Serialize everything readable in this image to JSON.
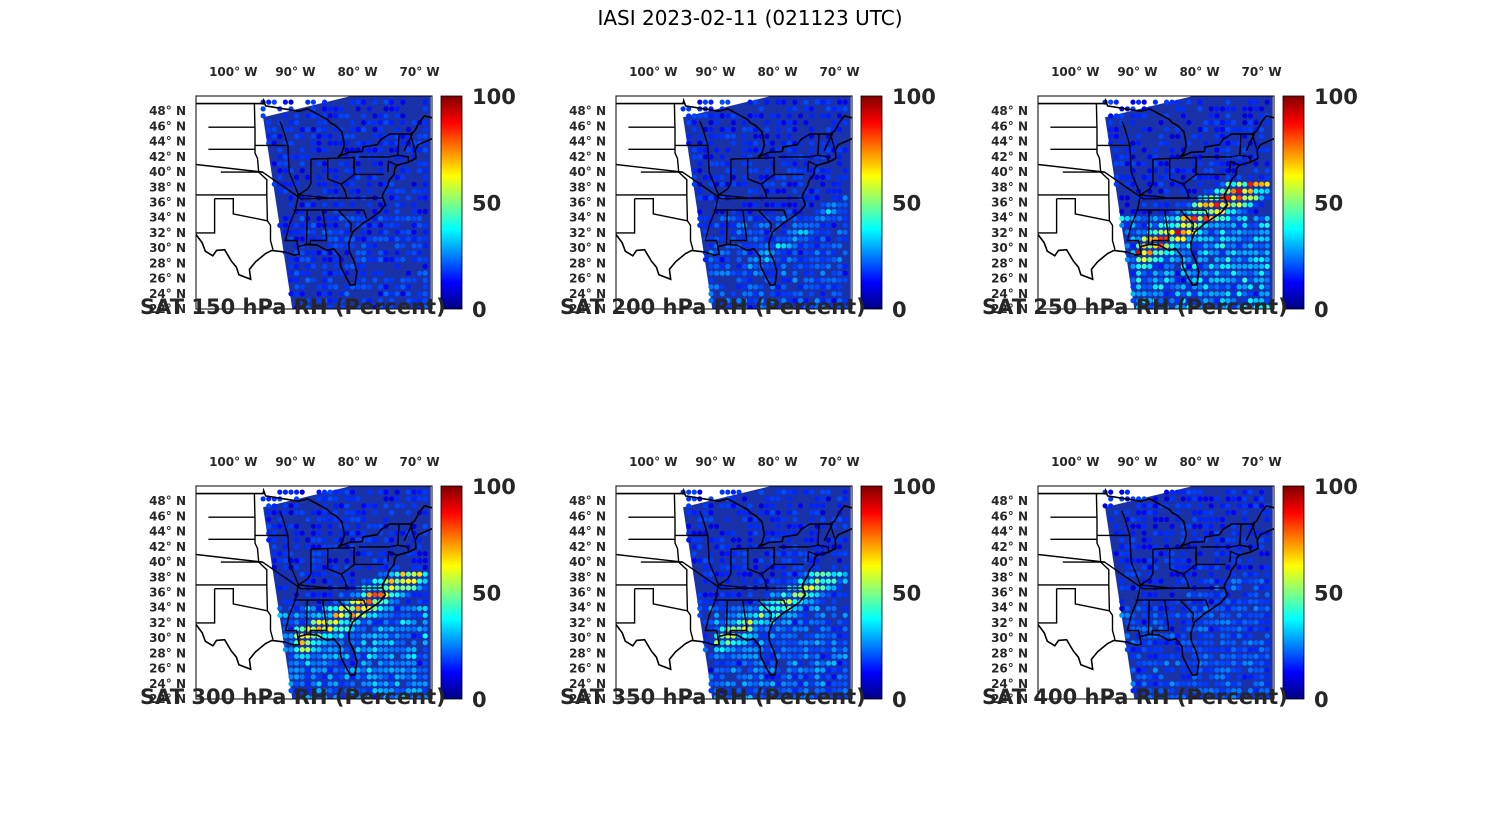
{
  "figure": {
    "title": "IASI 2023-02-11 (021123 UTC)"
  },
  "colormap": "jet",
  "colors": {
    "swath_background": "#1a32a8",
    "land": "#ffffff",
    "borders": "#000000"
  },
  "axes": {
    "lon_ticks": [
      "100° W",
      "90° W",
      "80° W",
      "70° W"
    ],
    "lon_values": [
      -100,
      -90,
      -80,
      -70
    ],
    "lat_ticks": [
      "48° N",
      "46° N",
      "44° N",
      "42° N",
      "40° N",
      "38° N",
      "36° N",
      "34° N",
      "32° N",
      "30° N",
      "28° N",
      "26° N",
      "24° N",
      "22° N"
    ],
    "lat_values": [
      48,
      46,
      44,
      42,
      40,
      38,
      36,
      34,
      32,
      30,
      28,
      26,
      24,
      22
    ],
    "lon_range": [
      -106,
      -68
    ],
    "lat_range": [
      22,
      50
    ]
  },
  "colorbar": {
    "ticks": [
      "0",
      "50",
      "100"
    ],
    "range": [
      0,
      100
    ]
  },
  "panels": [
    {
      "caption": "SAT 150 hPa RH (Percent)",
      "level": 150,
      "moist_intensity": 0.15,
      "moist_region": "gulf-stream"
    },
    {
      "caption": "SAT 200 hPa RH (Percent)",
      "level": 200,
      "moist_intensity": 0.35,
      "moist_region": "gulf-stream"
    },
    {
      "caption": "SAT 250 hPa RH (Percent)",
      "level": 250,
      "moist_intensity": 0.85,
      "moist_region": "southeast-band"
    },
    {
      "caption": "SAT 300 hPa RH (Percent)",
      "level": 300,
      "moist_intensity": 0.75,
      "moist_region": "southeast-band"
    },
    {
      "caption": "SAT 350 hPa RH (Percent)",
      "level": 350,
      "moist_intensity": 0.55,
      "moist_region": "southeast-band"
    },
    {
      "caption": "SAT 400 hPa RH (Percent)",
      "level": 400,
      "moist_intensity": 0.35,
      "moist_region": "atlantic"
    }
  ]
}
